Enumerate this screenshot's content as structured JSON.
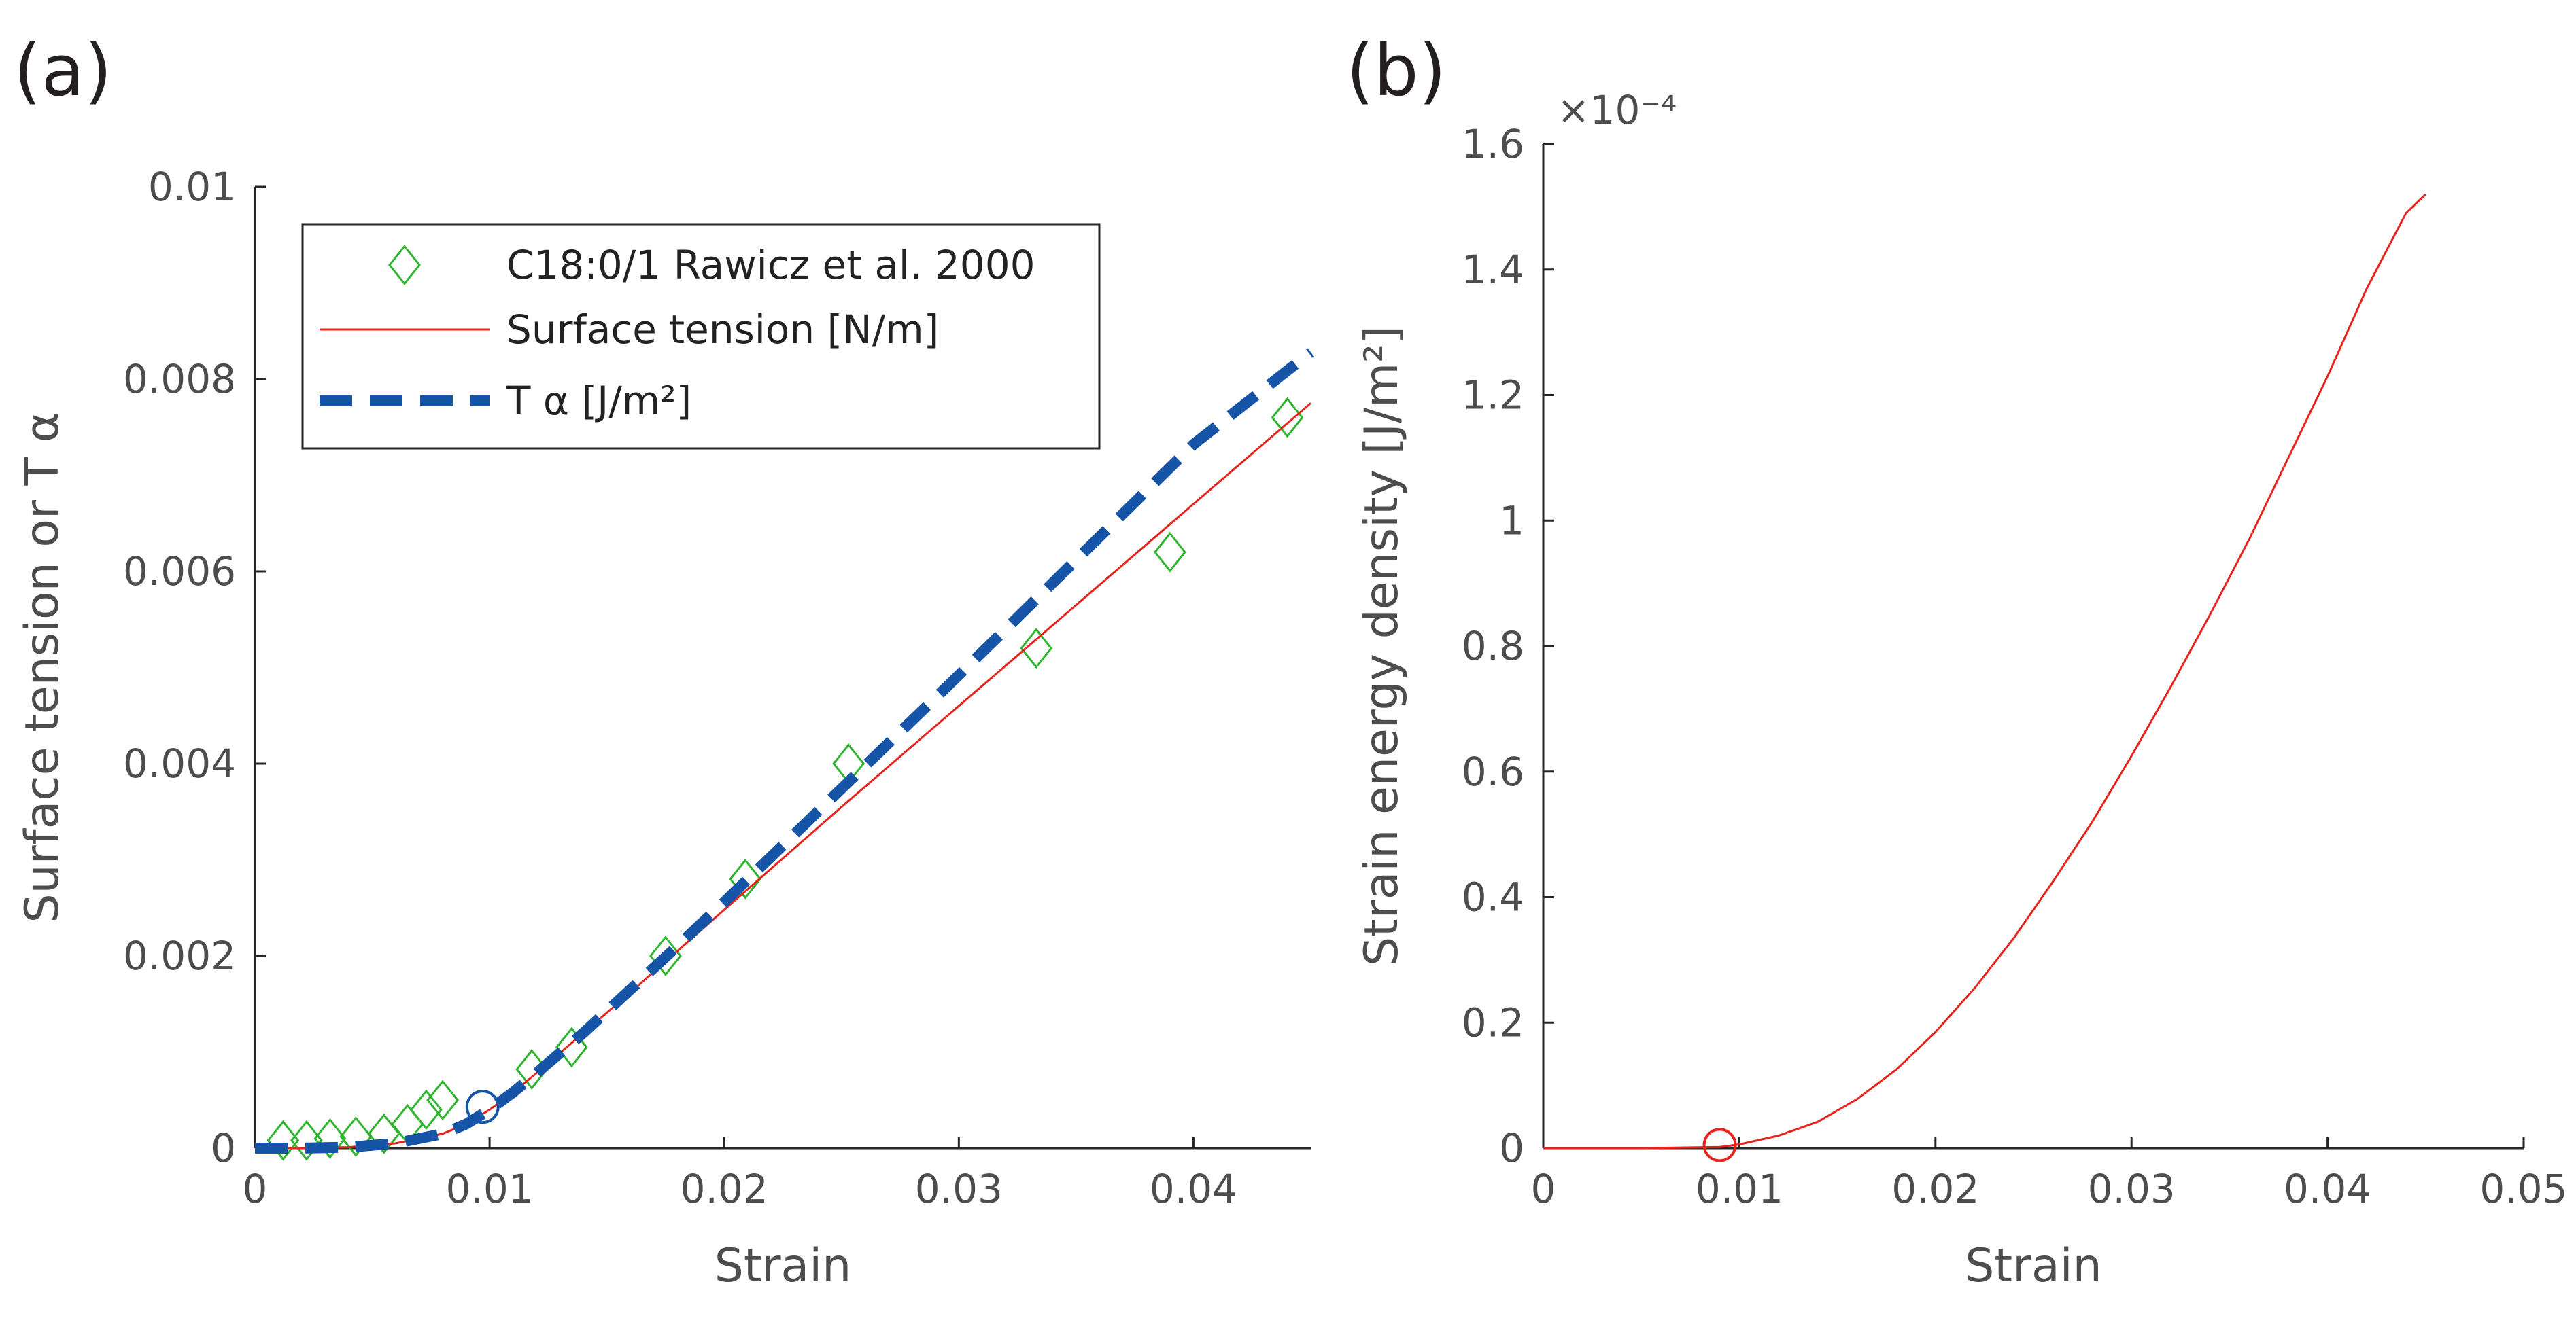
{
  "panels": [
    {
      "label": "(a)"
    },
    {
      "label": "(b)"
    }
  ],
  "chart_data": [
    {
      "type": "line",
      "xlabel": "Strain",
      "ylabel": "Surface tension  or   T α",
      "xlim": [
        0,
        0.045
      ],
      "ylim": [
        0,
        0.01
      ],
      "xticks": [
        0,
        0.01,
        0.02,
        0.03,
        0.04
      ],
      "xtick_labels": [
        "0",
        "0.01",
        "0.02",
        "0.03",
        "0.04"
      ],
      "yticks": [
        0,
        0.002,
        0.004,
        0.006,
        0.008,
        0.01
      ],
      "ytick_labels": [
        "0",
        "0.002",
        "0.004",
        "0.006",
        "0.008",
        "0.01"
      ],
      "legend_position": "top-left",
      "series": [
        {
          "name": "C18:0/1 Rawicz et al. 2000",
          "style": "markers",
          "marker": "diamond",
          "color": "#2db52d",
          "x": [
            0.0012,
            0.0022,
            0.0032,
            0.0043,
            0.0055,
            0.0065,
            0.0073,
            0.008,
            0.0118,
            0.0135,
            0.0175,
            0.0209,
            0.0253,
            0.0333,
            0.039,
            0.044
          ],
          "y": [
            8e-05,
            8e-05,
            0.0001,
            0.00012,
            0.00015,
            0.00025,
            0.0004,
            0.0005,
            0.00082,
            0.00105,
            0.002,
            0.0028,
            0.004,
            0.0052,
            0.0062,
            0.0076
          ]
        },
        {
          "name": "Surface tension [N/m]",
          "style": "solid",
          "color": "#e8231b",
          "x": [
            0,
            0.002,
            0.004,
            0.006,
            0.008,
            0.009,
            0.01,
            0.011,
            0.012,
            0.014,
            0.016,
            0.018,
            0.02,
            0.025,
            0.03,
            0.035,
            0.04,
            0.045
          ],
          "y": [
            0,
            0,
            1e-05,
            5e-05,
            0.00015,
            0.00025,
            0.0004,
            0.00058,
            0.00078,
            0.0012,
            0.00162,
            0.00205,
            0.00248,
            0.00355,
            0.0046,
            0.00565,
            0.0067,
            0.00775
          ]
        },
        {
          "name": "T α [J/m²]",
          "style": "dashed",
          "color": "#1554a6",
          "x": [
            0,
            0.002,
            0.004,
            0.006,
            0.008,
            0.009,
            0.01,
            0.011,
            0.012,
            0.014,
            0.016,
            0.018,
            0.02,
            0.025,
            0.03,
            0.035,
            0.04,
            0.045
          ],
          "y": [
            0,
            0,
            1e-05,
            5e-05,
            0.00015,
            0.00025,
            0.0004,
            0.00058,
            0.00078,
            0.0012,
            0.00165,
            0.0021,
            0.00256,
            0.00374,
            0.00492,
            0.00612,
            0.00732,
            0.00828
          ]
        }
      ],
      "annotations": [
        {
          "shape": "circle",
          "color": "#1554a6",
          "x": 0.0097,
          "y": 0.00043
        }
      ]
    },
    {
      "type": "line",
      "xlabel": "Strain",
      "ylabel": "Strain energy density [J/m²]",
      "xlim": [
        0,
        0.05
      ],
      "ylim": [
        0,
        1.6
      ],
      "y_multiplier": "×10⁻⁴",
      "xticks": [
        0,
        0.01,
        0.02,
        0.03,
        0.04,
        0.05
      ],
      "xtick_labels": [
        "0",
        "0.01",
        "0.02",
        "0.03",
        "0.04",
        "0.05"
      ],
      "yticks": [
        0,
        0.2,
        0.4,
        0.6,
        0.8,
        1,
        1.2,
        1.4,
        1.6
      ],
      "ytick_labels": [
        "0",
        "0.2",
        "0.4",
        "0.6",
        "0.8",
        "1",
        "1.2",
        "1.4",
        "1.6"
      ],
      "series": [
        {
          "name": "",
          "style": "solid",
          "color": "#e8231b",
          "x": [
            0,
            0.005,
            0.009,
            0.01,
            0.012,
            0.014,
            0.016,
            0.018,
            0.02,
            0.022,
            0.024,
            0.026,
            0.028,
            0.03,
            0.032,
            0.034,
            0.036,
            0.038,
            0.04,
            0.042,
            0.044,
            0.045
          ],
          "y": [
            0,
            0,
            0.002,
            0.006,
            0.02,
            0.042,
            0.078,
            0.125,
            0.185,
            0.255,
            0.335,
            0.425,
            0.52,
            0.625,
            0.735,
            0.85,
            0.97,
            1.1,
            1.23,
            1.37,
            1.49,
            1.52
          ]
        }
      ],
      "annotations": [
        {
          "shape": "circle",
          "color": "#e8231b",
          "x": 0.009,
          "y": 0.005
        }
      ]
    }
  ]
}
